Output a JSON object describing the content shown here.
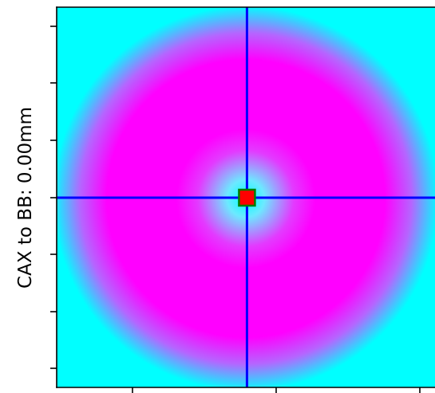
{
  "chart_data": {
    "type": "heatmap",
    "title": "",
    "xlabel": "",
    "ylabel": "CAX to BB: 0.00mm",
    "colormap": [
      "#00ffff",
      "#ff00ff"
    ],
    "pattern": "radial ring: cyan at center and corners, magenta ring in between",
    "crosshair": {
      "color": "#0000ff",
      "vertical_x_fraction": 0.503,
      "horizontal_y_fraction": 0.501
    },
    "marker": {
      "shape": "square",
      "color": "#ff0000",
      "edge_color": "#008000"
    },
    "x_ticks_count": 3,
    "y_ticks_count": 7,
    "grid": false
  }
}
